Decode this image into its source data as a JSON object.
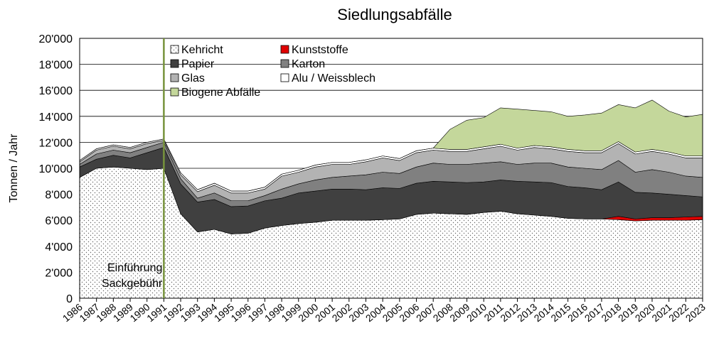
{
  "chart_data": {
    "type": "stacked_area",
    "title": "Siedlungsabfälle",
    "ylabel": "Tonnen / Jahr",
    "x": [
      1986,
      1987,
      1988,
      1989,
      1990,
      1991,
      1992,
      1993,
      1994,
      1995,
      1996,
      1997,
      1998,
      1999,
      2000,
      2001,
      2002,
      2003,
      2004,
      2005,
      2006,
      2007,
      2008,
      2009,
      2010,
      2011,
      2012,
      2013,
      2014,
      2015,
      2016,
      2017,
      2018,
      2019,
      2020,
      2021,
      2022,
      2023
    ],
    "xlim": [
      1986,
      2023
    ],
    "ylim": [
      0,
      20000
    ],
    "yticks": [
      {
        "value": 0,
        "label": "0"
      },
      {
        "value": 2000,
        "label": "2'000"
      },
      {
        "value": 4000,
        "label": "4'000"
      },
      {
        "value": 6000,
        "label": "6'000"
      },
      {
        "value": 8000,
        "label": "8'000"
      },
      {
        "value": 10000,
        "label": "10'000"
      },
      {
        "value": 12000,
        "label": "12'000"
      },
      {
        "value": 14000,
        "label": "14'000"
      },
      {
        "value": 16000,
        "label": "16'000"
      },
      {
        "value": 18000,
        "label": "18'000"
      },
      {
        "value": 20000,
        "label": "20'000"
      }
    ],
    "grid": true,
    "legend": "top-left",
    "series": [
      {
        "name": "Kehricht",
        "color": "#ffffff",
        "pattern": "dots",
        "values": [
          9300,
          10000,
          10100,
          10000,
          9900,
          10000,
          6500,
          5100,
          5300,
          4950,
          5000,
          5400,
          5600,
          5750,
          5850,
          6000,
          6000,
          6000,
          6050,
          6100,
          6450,
          6550,
          6500,
          6450,
          6600,
          6700,
          6500,
          6400,
          6300,
          6150,
          6100,
          6100,
          6050,
          5950,
          6000,
          6000,
          6000,
          6050
        ]
      },
      {
        "name": "Kunststoffe",
        "color": "#e00000",
        "values": [
          0,
          0,
          0,
          0,
          0,
          0,
          0,
          0,
          0,
          0,
          0,
          0,
          0,
          0,
          0,
          0,
          0,
          0,
          0,
          0,
          0,
          0,
          0,
          0,
          0,
          0,
          0,
          0,
          0,
          0,
          0,
          0,
          250,
          150,
          200,
          200,
          250,
          250
        ]
      },
      {
        "name": "Papier",
        "color": "#404040",
        "values": [
          800,
          700,
          900,
          800,
          1300,
          1600,
          2300,
          2300,
          2300,
          2100,
          2100,
          2100,
          2100,
          2350,
          2400,
          2400,
          2400,
          2350,
          2450,
          2350,
          2400,
          2450,
          2450,
          2450,
          2350,
          2400,
          2500,
          2550,
          2600,
          2450,
          2400,
          2250,
          2650,
          2050,
          1900,
          1800,
          1650,
          1500
        ]
      },
      {
        "name": "Karton",
        "color": "#808080",
        "values": [
          200,
          400,
          400,
          400,
          400,
          400,
          400,
          300,
          500,
          450,
          400,
          400,
          700,
          700,
          850,
          900,
          1000,
          1150,
          1200,
          1150,
          1250,
          1400,
          1350,
          1400,
          1450,
          1400,
          1300,
          1450,
          1500,
          1500,
          1500,
          1550,
          1650,
          1550,
          1800,
          1700,
          1500,
          1500
        ]
      },
      {
        "name": "Glas",
        "color": "#b3b3b3",
        "values": [
          200,
          300,
          300,
          300,
          300,
          150,
          300,
          500,
          600,
          600,
          600,
          500,
          1000,
          900,
          1000,
          1000,
          900,
          1000,
          1100,
          1000,
          1100,
          1000,
          1000,
          1000,
          1100,
          1200,
          1100,
          1200,
          1100,
          1200,
          1200,
          1300,
          1300,
          1400,
          1400,
          1400,
          1400,
          1500
        ]
      },
      {
        "name": "Alu / Weissblech",
        "color": "#ffffff",
        "values": [
          100,
          100,
          100,
          100,
          100,
          100,
          150,
          150,
          150,
          150,
          150,
          150,
          150,
          150,
          150,
          150,
          150,
          150,
          150,
          150,
          150,
          150,
          150,
          150,
          150,
          150,
          150,
          150,
          150,
          150,
          150,
          150,
          150,
          150,
          150,
          150,
          150,
          150
        ]
      },
      {
        "name": "Biogene Abfälle",
        "color": "#c4d79b",
        "values": [
          0,
          0,
          0,
          0,
          0,
          0,
          0,
          0,
          0,
          0,
          0,
          0,
          0,
          0,
          0,
          0,
          0,
          0,
          0,
          0,
          0,
          0,
          1550,
          2250,
          2250,
          2800,
          3000,
          2700,
          2700,
          2550,
          2750,
          2900,
          2850,
          3400,
          3800,
          3150,
          3000,
          3200
        ]
      }
    ],
    "annotation": {
      "x": 1991,
      "color": "#77933c",
      "lines": [
        "Einführung",
        "Sackgebühr"
      ]
    }
  }
}
